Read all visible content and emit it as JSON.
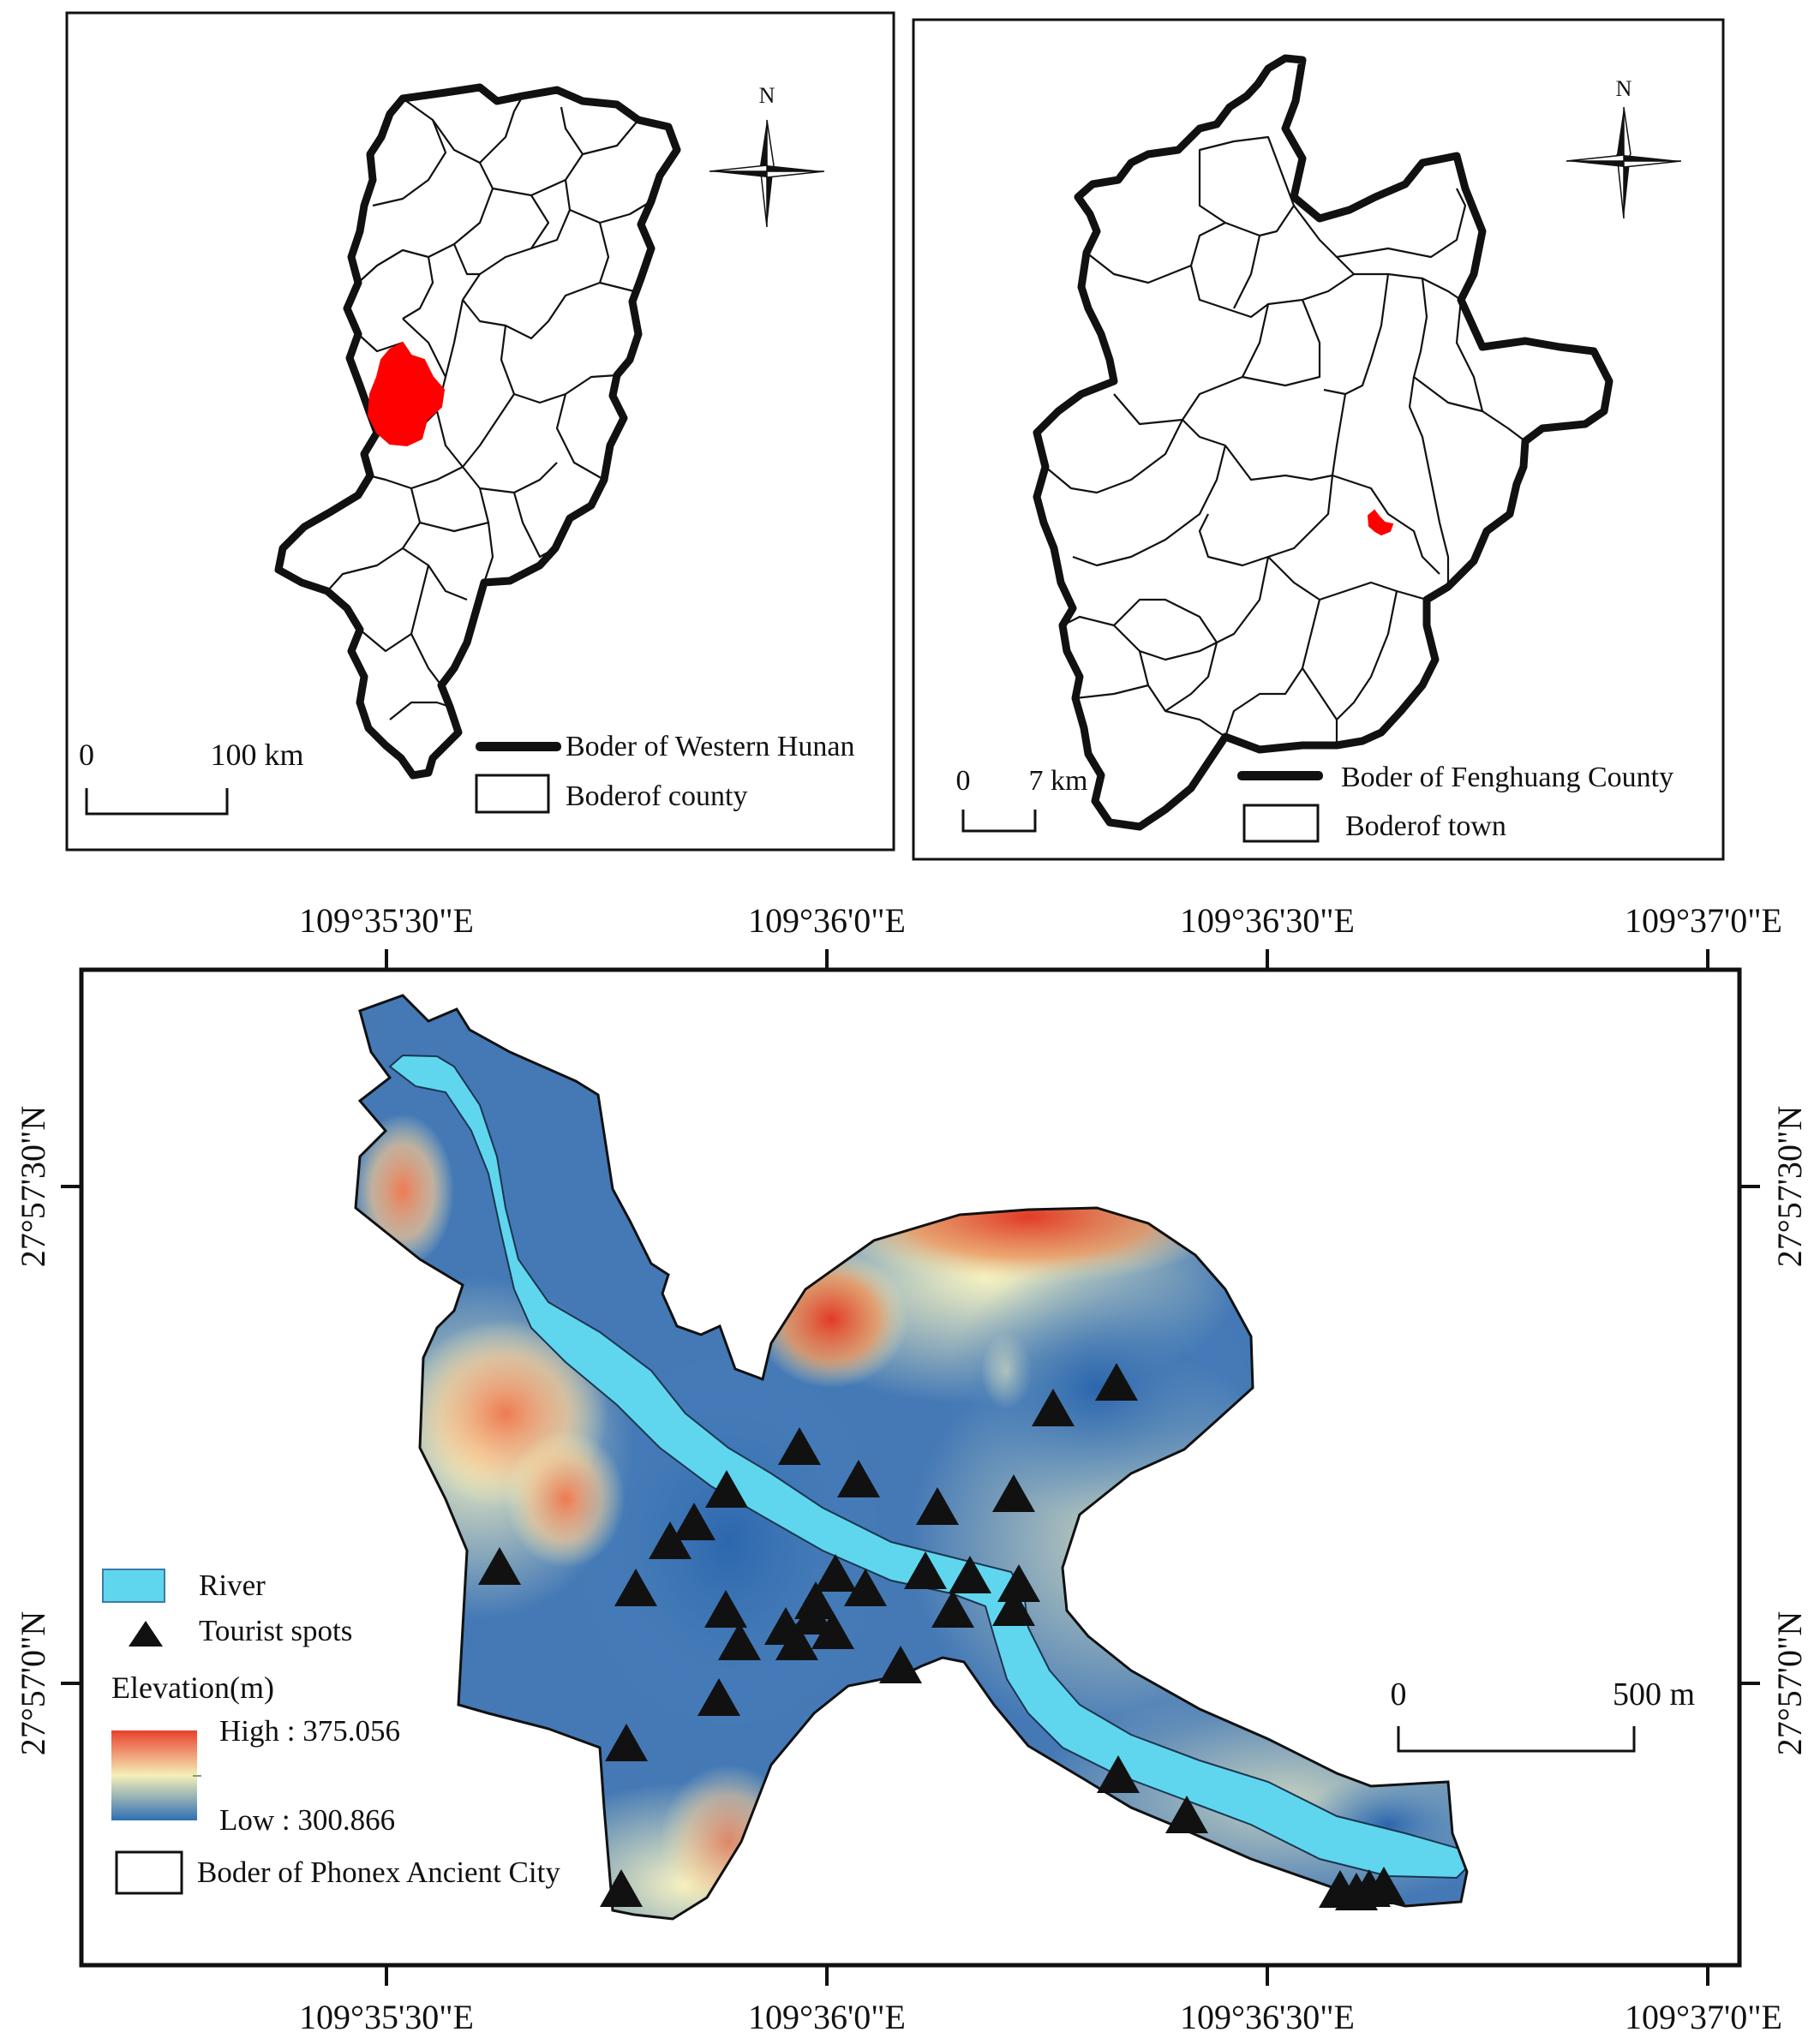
{
  "inset_western_hunan": {
    "north_label": "N",
    "scale_start": "0",
    "scale_end": "100 km",
    "legend_border_label": "Boder of Western Hunan",
    "legend_county_label": "Boderof county"
  },
  "inset_fenghuang": {
    "north_label": "N",
    "scale_start": "0",
    "scale_end": "7 km",
    "legend_border_label": "Boder of Fenghuang County",
    "legend_town_label": "Boderof town"
  },
  "main_map": {
    "lon_ticks": [
      "109°35'30\"E",
      "109°36'0\"E",
      "109°36'30\"E",
      "109°37'0\"E"
    ],
    "lat_ticks": [
      "27°57'30\"N",
      "27°57'0\"N"
    ],
    "scale_start": "0",
    "scale_end": "500 m",
    "legend": {
      "river_label": "River",
      "tourist_label": "Tourist spots",
      "elevation_title": "Elevation(m)",
      "high_label": "High : 375.056",
      "low_label": "Low : 300.866",
      "border_label": "Boder of Phonex Ancient City"
    }
  },
  "colors": {
    "highlight": "#ff0000",
    "river": "#5fd6ee",
    "elev_high": "#e8412c",
    "elev_mid": "#f5f0b8",
    "elev_low": "#2f6fb2"
  }
}
